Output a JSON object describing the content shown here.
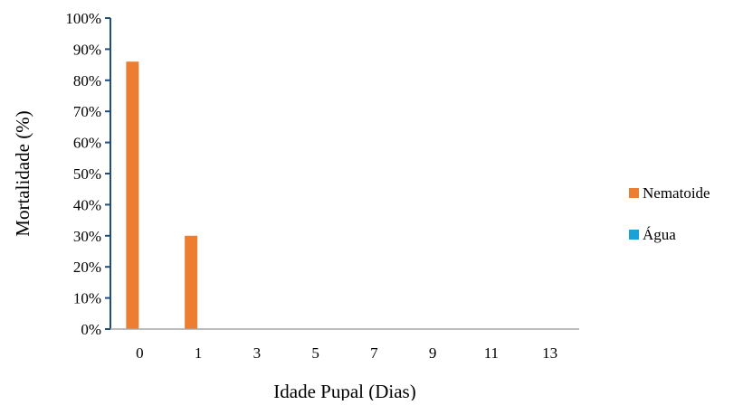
{
  "colors": {
    "nematoide": "#ED7D31",
    "agua": "#1BA1D8",
    "axis": "#1F4E79"
  },
  "chart_data": {
    "type": "bar",
    "title": "",
    "xlabel": "Idade Pupal (Dias)",
    "ylabel": "Mortalidade (%)",
    "categories": [
      "0",
      "1",
      "3",
      "5",
      "7",
      "9",
      "11",
      "13"
    ],
    "series": [
      {
        "name": "Nematoide",
        "values": [
          86,
          30,
          0,
          0,
          0,
          0,
          0,
          0
        ]
      },
      {
        "name": "Água",
        "values": [
          0,
          0,
          0,
          0,
          0,
          0,
          0,
          0
        ]
      }
    ],
    "ylim": [
      0,
      100
    ],
    "yticks": [
      "0%",
      "10%",
      "20%",
      "30%",
      "40%",
      "50%",
      "60%",
      "70%",
      "80%",
      "90%",
      "100%"
    ],
    "grid": false,
    "legend_position": "right"
  }
}
